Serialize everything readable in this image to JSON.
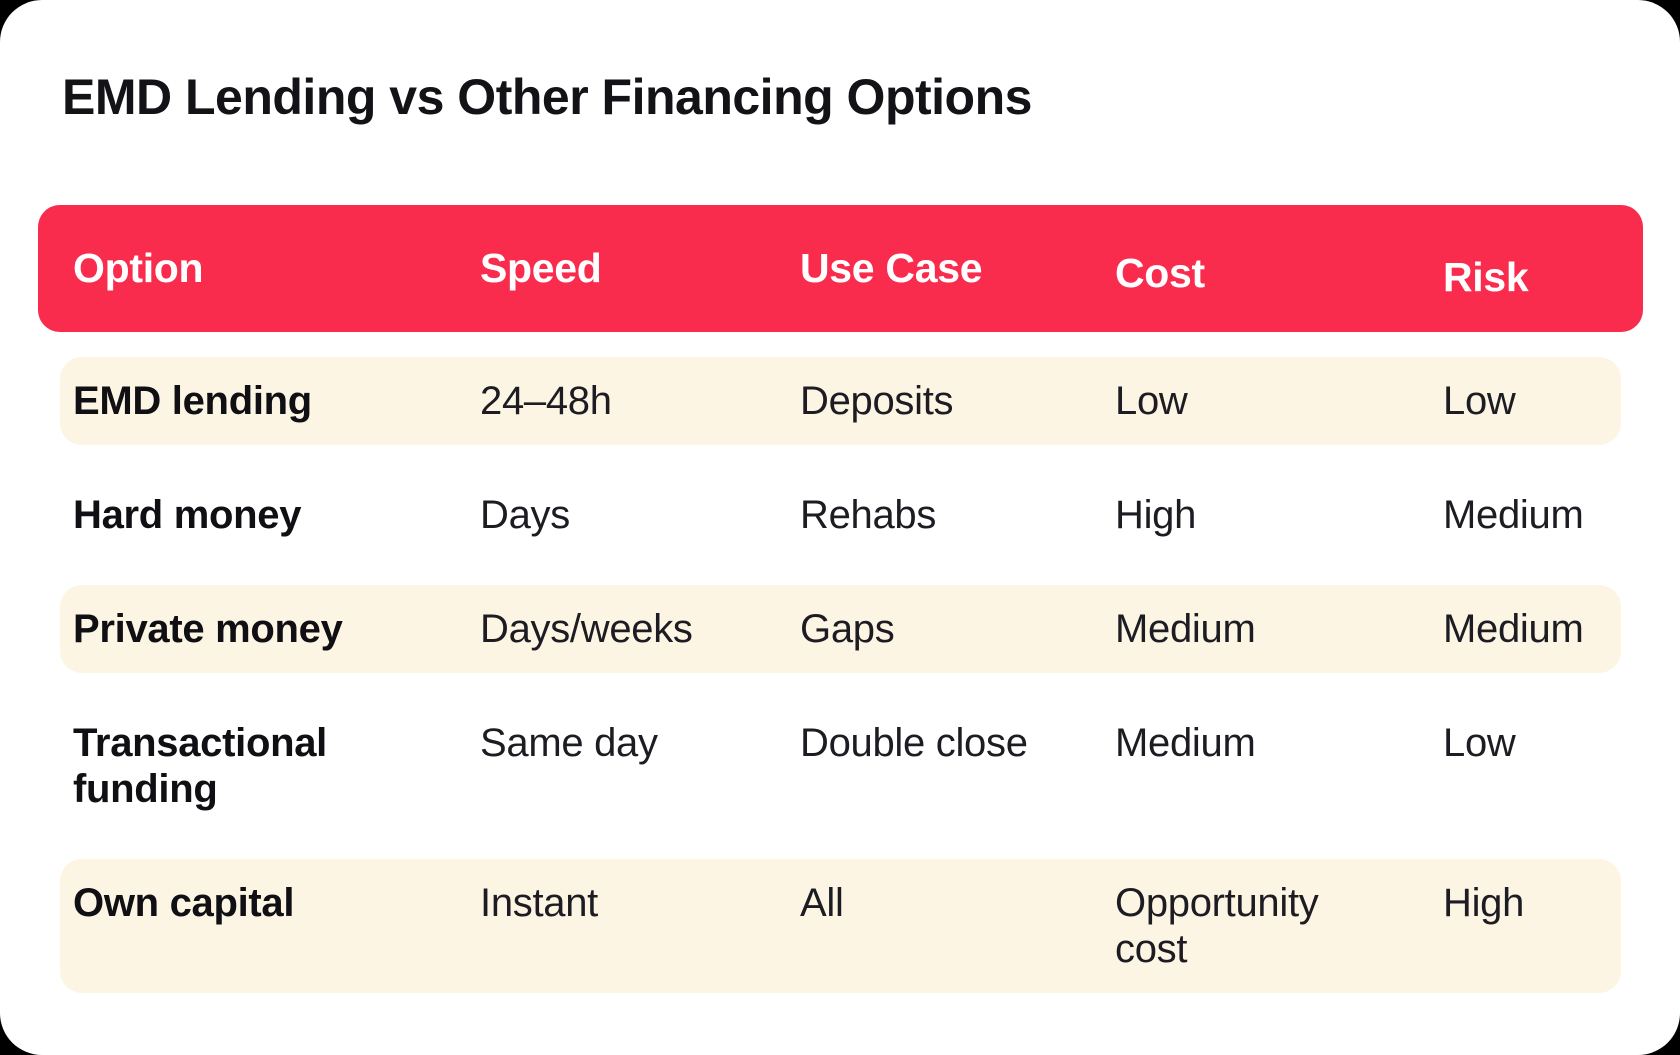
{
  "page": {
    "background": "#000000",
    "card_background": "#ffffff"
  },
  "title": "EMD Lending vs Other Financing Options",
  "table": {
    "header_bg": "#fa2c4e",
    "header_text_color": "#ffffff",
    "stripe_bg": "#fdf5e4",
    "columns": [
      "Option",
      "Speed",
      "Use Case",
      "Cost",
      "Risk"
    ],
    "rows": [
      {
        "option": "EMD lending",
        "speed": "24–48h",
        "use_case": "Deposits",
        "cost": "Low",
        "risk": "Low",
        "striped": true
      },
      {
        "option": "Hard money",
        "speed": "Days",
        "use_case": "Rehabs",
        "cost": "High",
        "risk": "Medium",
        "striped": false
      },
      {
        "option": "Private money",
        "speed": "Days/weeks",
        "use_case": "Gaps",
        "cost": "Medium",
        "risk": "Medium",
        "striped": true
      },
      {
        "option": "Transactional funding",
        "speed": "Same day",
        "use_case": "Double close",
        "cost": "Medium",
        "risk": "Low",
        "striped": false
      },
      {
        "option": "Own capital",
        "speed": "Instant",
        "use_case": "All",
        "cost": "Opportunity cost",
        "risk": "High",
        "striped": true
      }
    ]
  }
}
